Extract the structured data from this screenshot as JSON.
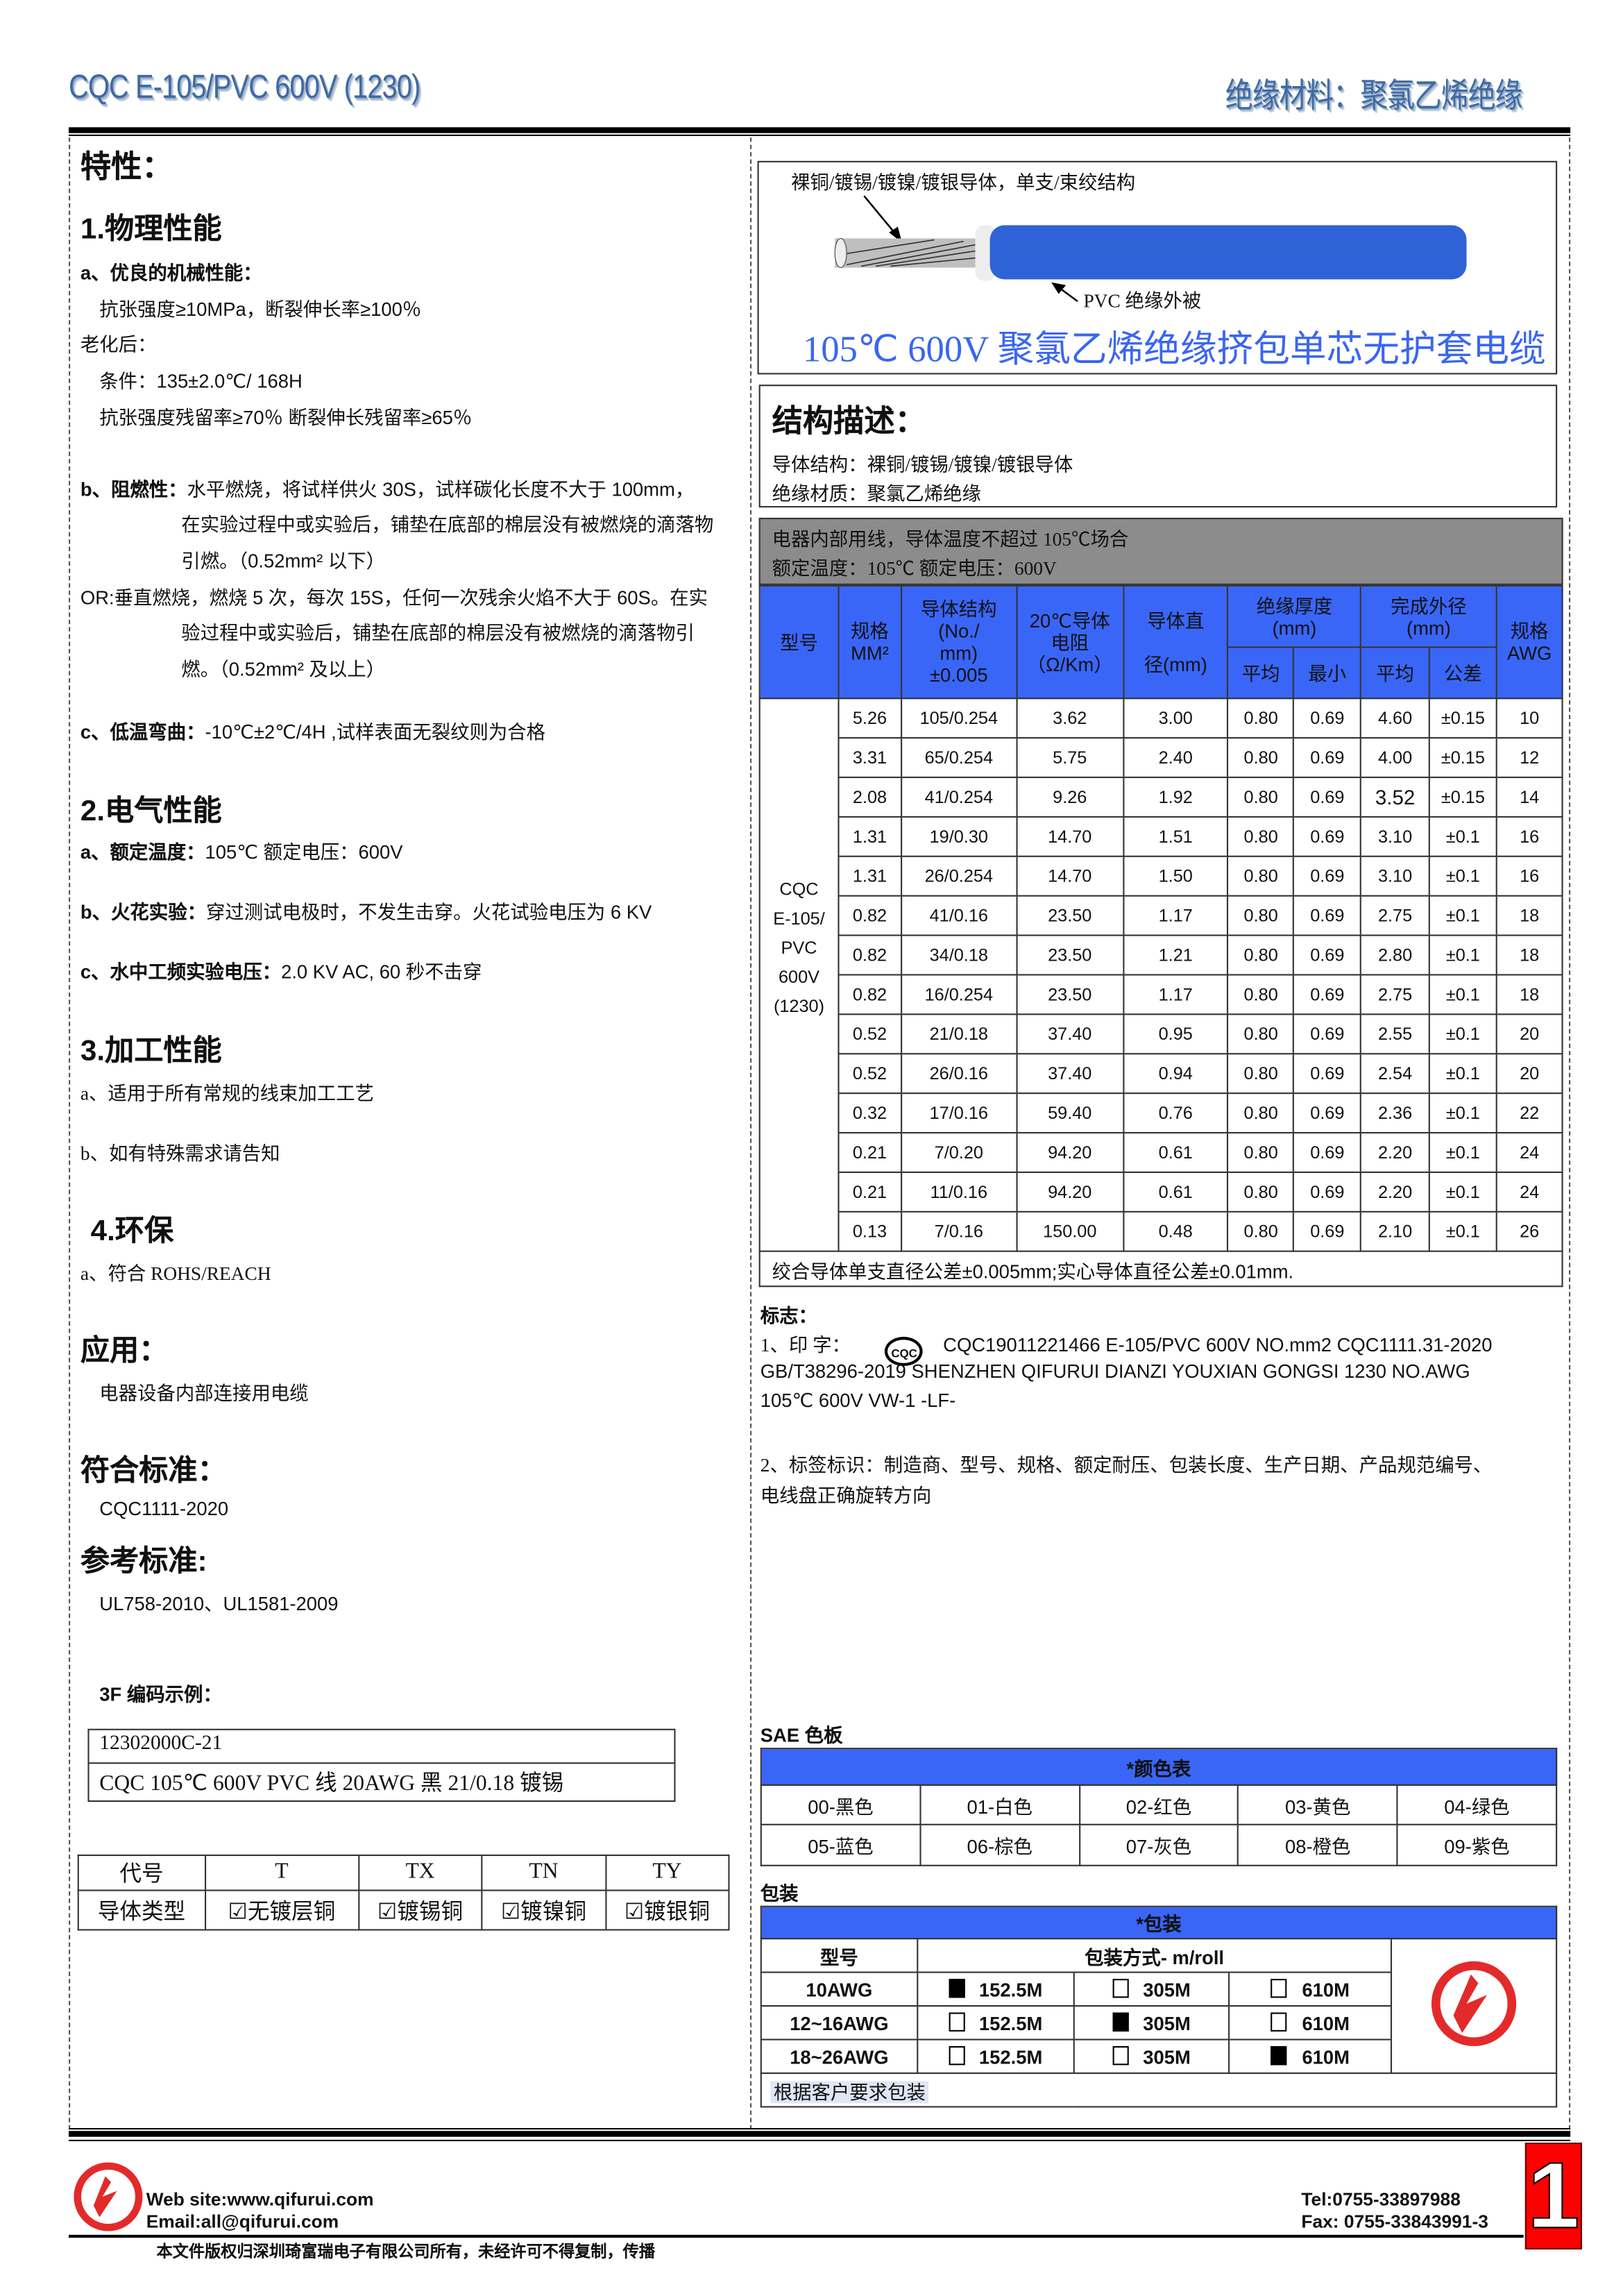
{
  "header": {
    "title": "CQC E-105/PVC 600V (1230)",
    "category": "绝缘材料：聚氯乙烯绝缘"
  },
  "left": {
    "features_title": "特性：",
    "s1": {
      "title": "1.物理性能",
      "a_label": "a、优良的机械性能：",
      "a_line1": "抗张强度≥10MPa，断裂伸长率≥100％",
      "aging": "老化后：",
      "cond": "条件：135±2.0℃/ 168H",
      "retention": "抗张强度残留率≥70％  断裂伸长残留率≥65％",
      "b_label": "b、阻燃性：",
      "b_line1": "水平燃烧，将试样供火 30S，试样碳化长度不大于 100mm，",
      "b_line2": "在实验过程中或实验后，铺垫在底部的棉层没有被燃烧的滴落物",
      "b_line3": "引燃。（0.52mm² 以下）",
      "or_line1": "OR:垂直燃烧，燃烧 5 次，每次 15S，任何一次残余火焰不大于 60S。在实",
      "or_line2": "验过程中或实验后，铺垫在底部的棉层没有被燃烧的滴落物引",
      "or_line3": "燃。（0.52mm² 及以上）",
      "c_label": "c、低温弯曲：",
      "c_text": "-10℃±2℃/4H ,试样表面无裂纹则为合格"
    },
    "s2": {
      "title": "2.电气性能",
      "a_label": "a、额定温度：",
      "a_text": "105℃    额定电压：600V",
      "b_label": "b、火花实验：",
      "b_text": "穿过测试电极时，不发生击穿。火花试验电压为 6 KV",
      "c_label": "c、水中工频实验电压：",
      "c_text": "2.0 KV AC, 60 秒不击穿"
    },
    "s3": {
      "title": "3.加工性能",
      "a": "a、适用于所有常规的线束加工工艺",
      "b": "b、如有特殊需求请告知"
    },
    "s4": {
      "title": "4.环保",
      "a": "a、符合 ROHS/REACH"
    },
    "app_title": "应用：",
    "app_text": "电器设备内部连接用电缆",
    "std_title": "符合标准：",
    "std_text": "CQC1111-2020",
    "ref_title": "参考标准:",
    "ref_text": "UL758-2010、UL1581-2009",
    "code_title": "3F 编码示例：",
    "code_line1": "12302000C-21",
    "code_line2": "CQC 105℃  600V PVC 线    20AWG  黑  21/0.18 镀锡",
    "conductor_table": {
      "headers": [
        "代号",
        "T",
        "TX",
        "TN",
        "TY"
      ],
      "row_label": "导体类型",
      "values": [
        "无镀层铜",
        "镀锡铜",
        "镀镍铜",
        "镀银铜"
      ],
      "checked": [
        true,
        true,
        true,
        true
      ]
    }
  },
  "right": {
    "cable": {
      "conductor_label": "裸铜/镀锡/镀镍/镀银导体，单支/束绞结构",
      "insulation_label": "PVC  绝缘外被",
      "title": "105℃  600V 聚氯乙烯绝缘挤包单芯无护套电缆",
      "insulation_color": "#2f62d6"
    },
    "structure": {
      "title": "结构描述：",
      "conductor": "导体结构：裸铜/镀锡/镀镍/镀银导体",
      "insulation": "绝缘材质：聚氯乙烯绝缘"
    },
    "usage": {
      "line1": "电器内部用线，导体温度不超过 105℃场合",
      "line2": "额定温度：105℃  额定电压：600V"
    },
    "spec_table": {
      "headers": {
        "model": "型号",
        "size": [
          "规格",
          "MM²"
        ],
        "strand": [
          "导体结构",
          "(No./",
          "mm)",
          "±0.005"
        ],
        "resistance": [
          "20℃导体",
          "电阻",
          "（Ω/Km）"
        ],
        "diameter": [
          "导体直",
          "径(mm)"
        ],
        "ins": [
          "绝缘厚度",
          "(mm)"
        ],
        "od": [
          "完成外径",
          "(mm)"
        ],
        "ins_avg": "平均",
        "ins_min": "最小",
        "od_avg": "平均",
        "od_tol": "公差",
        "awg": [
          "规格",
          "AWG"
        ]
      },
      "model": [
        "CQC",
        "E-105/",
        "PVC",
        "600V",
        "(1230)"
      ],
      "rows": [
        [
          "5.26",
          "105/0.254",
          "3.62",
          "3.00",
          "0.80",
          "0.69",
          "4.60",
          "±0.15",
          "10"
        ],
        [
          "3.31",
          "65/0.254",
          "5.75",
          "2.40",
          "0.80",
          "0.69",
          "4.00",
          "±0.15",
          "12"
        ],
        [
          "2.08",
          "41/0.254",
          "9.26",
          "1.92",
          "0.80",
          "0.69",
          "3.52",
          "±0.15",
          "14"
        ],
        [
          "1.31",
          "19/0.30",
          "14.70",
          "1.51",
          "0.80",
          "0.69",
          "3.10",
          "±0.1",
          "16"
        ],
        [
          "1.31",
          "26/0.254",
          "14.70",
          "1.50",
          "0.80",
          "0.69",
          "3.10",
          "±0.1",
          "16"
        ],
        [
          "0.82",
          "41/0.16",
          "23.50",
          "1.17",
          "0.80",
          "0.69",
          "2.75",
          "±0.1",
          "18"
        ],
        [
          "0.82",
          "34/0.18",
          "23.50",
          "1.21",
          "0.80",
          "0.69",
          "2.80",
          "±0.1",
          "18"
        ],
        [
          "0.82",
          "16/0.254",
          "23.50",
          "1.17",
          "0.80",
          "0.69",
          "2.75",
          "±0.1",
          "18"
        ],
        [
          "0.52",
          "21/0.18",
          "37.40",
          "0.95",
          "0.80",
          "0.69",
          "2.55",
          "±0.1",
          "20"
        ],
        [
          "0.52",
          "26/0.16",
          "37.40",
          "0.94",
          "0.80",
          "0.69",
          "2.54",
          "±0.1",
          "20"
        ],
        [
          "0.32",
          "17/0.16",
          "59.40",
          "0.76",
          "0.80",
          "0.69",
          "2.36",
          "±0.1",
          "22"
        ],
        [
          "0.21",
          "7/0.20",
          "94.20",
          "0.61",
          "0.80",
          "0.69",
          "2.20",
          "±0.1",
          "24"
        ],
        [
          "0.21",
          "11/0.16",
          "94.20",
          "0.61",
          "0.80",
          "0.69",
          "2.20",
          "±0.1",
          "24"
        ],
        [
          "0.13",
          "7/0.16",
          "150.00",
          "0.48",
          "0.80",
          "0.69",
          "2.10",
          "±0.1",
          "26"
        ]
      ],
      "note": "绞合导体单支直径公差±0.005mm;实心导体直径公差±0.01mm."
    },
    "marking": {
      "title": "标志：",
      "p1_prefix": "1、印 字：",
      "cqc_logo": "CQC",
      "p1_line1": "CQC19011221466  E-105/PVC  600V  NO.mm2  CQC1111.31-2020",
      "p1_line2": "GB/T38296-2019 SHENZHEN QIFURUI DIANZI YOUXIAN GONGSI      1230 NO.AWG",
      "p1_line3": "105℃  600V VW-1 -LF-",
      "p2_line1": "2、标签标识：制造商、型号、规格、额定耐压、包装长度、生产日期、产品规范编号、",
      "p2_line2": "电线盘正确旋转方向"
    },
    "colors": {
      "title": "SAE 色板",
      "header": "*颜色表",
      "items": [
        "00-黑色",
        "01-白色",
        "02-红色",
        "03-黄色",
        "04-绿色",
        "05-蓝色",
        "06-棕色",
        "07-灰色",
        "08-橙色",
        "09-紫色"
      ]
    },
    "packaging": {
      "title": "包装",
      "header": "*包装",
      "col_model": "型号",
      "col_method": "包装方式- m/roll",
      "options": [
        "152.5M",
        "305M",
        "610M"
      ],
      "rows": [
        {
          "model": "10AWG",
          "selected": 0
        },
        {
          "model": "12~16AWG",
          "selected": 1
        },
        {
          "model": "18~26AWG",
          "selected": 2
        }
      ],
      "note": "根据客户要求包装"
    },
    "accent_color": "#3a66f7"
  },
  "footer": {
    "website": "Web site:www.qifurui.com",
    "email": "Email:all@qifurui.com",
    "tel": "Tel:0755-33897988",
    "fax": "Fax: 0755-33843991-3",
    "copyright": "本文件版权归深圳琦富瑞电子有限公司所有，未经许可不得复制，传播",
    "page_number": "1",
    "brand_color": "#e32a2a"
  }
}
